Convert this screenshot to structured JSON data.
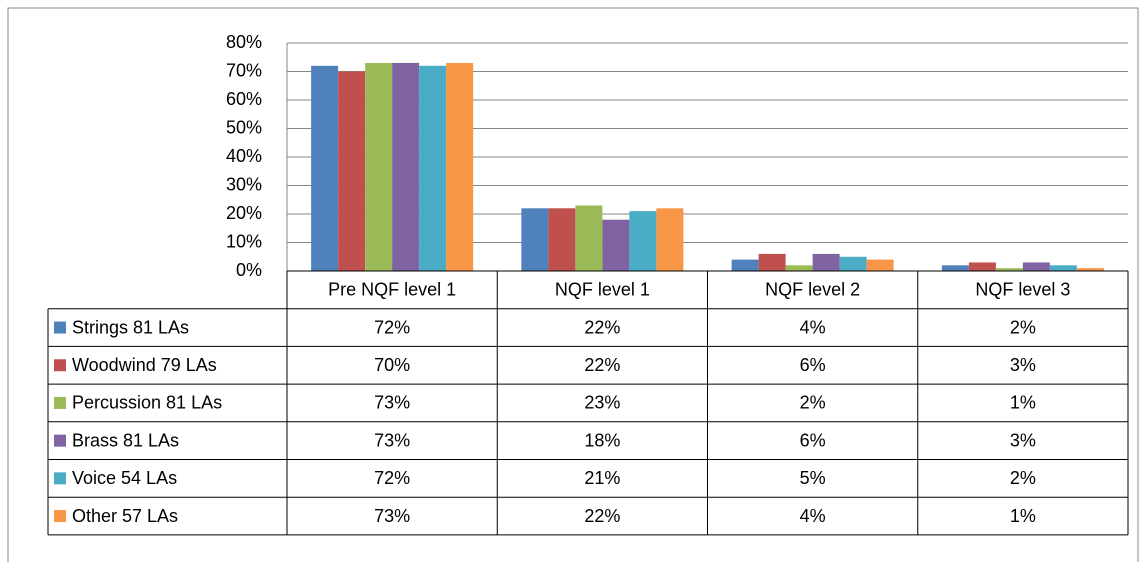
{
  "chart_data": {
    "type": "bar",
    "categories": [
      "Pre NQF level 1",
      "NQF level 1",
      "NQF level 2",
      "NQF level 3"
    ],
    "series": [
      {
        "name": "Strings 81 LAs",
        "color": "#4f81bd",
        "values": [
          72,
          22,
          4,
          2
        ],
        "value_labels": [
          "72%",
          "22%",
          "4%",
          "2%"
        ]
      },
      {
        "name": "Woodwind 79 LAs",
        "color": "#c0504d",
        "values": [
          70,
          22,
          6,
          3
        ],
        "value_labels": [
          "70%",
          "22%",
          "6%",
          "3%"
        ]
      },
      {
        "name": "Percussion 81 LAs",
        "color": "#9bbb59",
        "values": [
          73,
          23,
          2,
          1
        ],
        "value_labels": [
          "73%",
          "23%",
          "2%",
          "1%"
        ]
      },
      {
        "name": "Brass 81 LAs",
        "color": "#8064a2",
        "values": [
          73,
          18,
          6,
          3
        ],
        "value_labels": [
          "73%",
          "18%",
          "6%",
          "3%"
        ]
      },
      {
        "name": "Voice 54 LAs",
        "color": "#4bacc6",
        "values": [
          72,
          21,
          5,
          2
        ],
        "value_labels": [
          "72%",
          "21%",
          "5%",
          "2%"
        ]
      },
      {
        "name": "Other 57 LAs",
        "color": "#f79646",
        "values": [
          73,
          22,
          4,
          1
        ],
        "value_labels": [
          "73%",
          "22%",
          "4%",
          "1%"
        ]
      }
    ],
    "ylim": [
      0,
      80
    ],
    "yticks": [
      {
        "value": 0,
        "label": "0%"
      },
      {
        "value": 10,
        "label": "10%"
      },
      {
        "value": 20,
        "label": "20%"
      },
      {
        "value": 30,
        "label": "30%"
      },
      {
        "value": 40,
        "label": "40%"
      },
      {
        "value": 50,
        "label": "50%"
      },
      {
        "value": 60,
        "label": "60%"
      },
      {
        "value": 70,
        "label": "70%"
      },
      {
        "value": 80,
        "label": "80%"
      }
    ],
    "grid": true
  }
}
